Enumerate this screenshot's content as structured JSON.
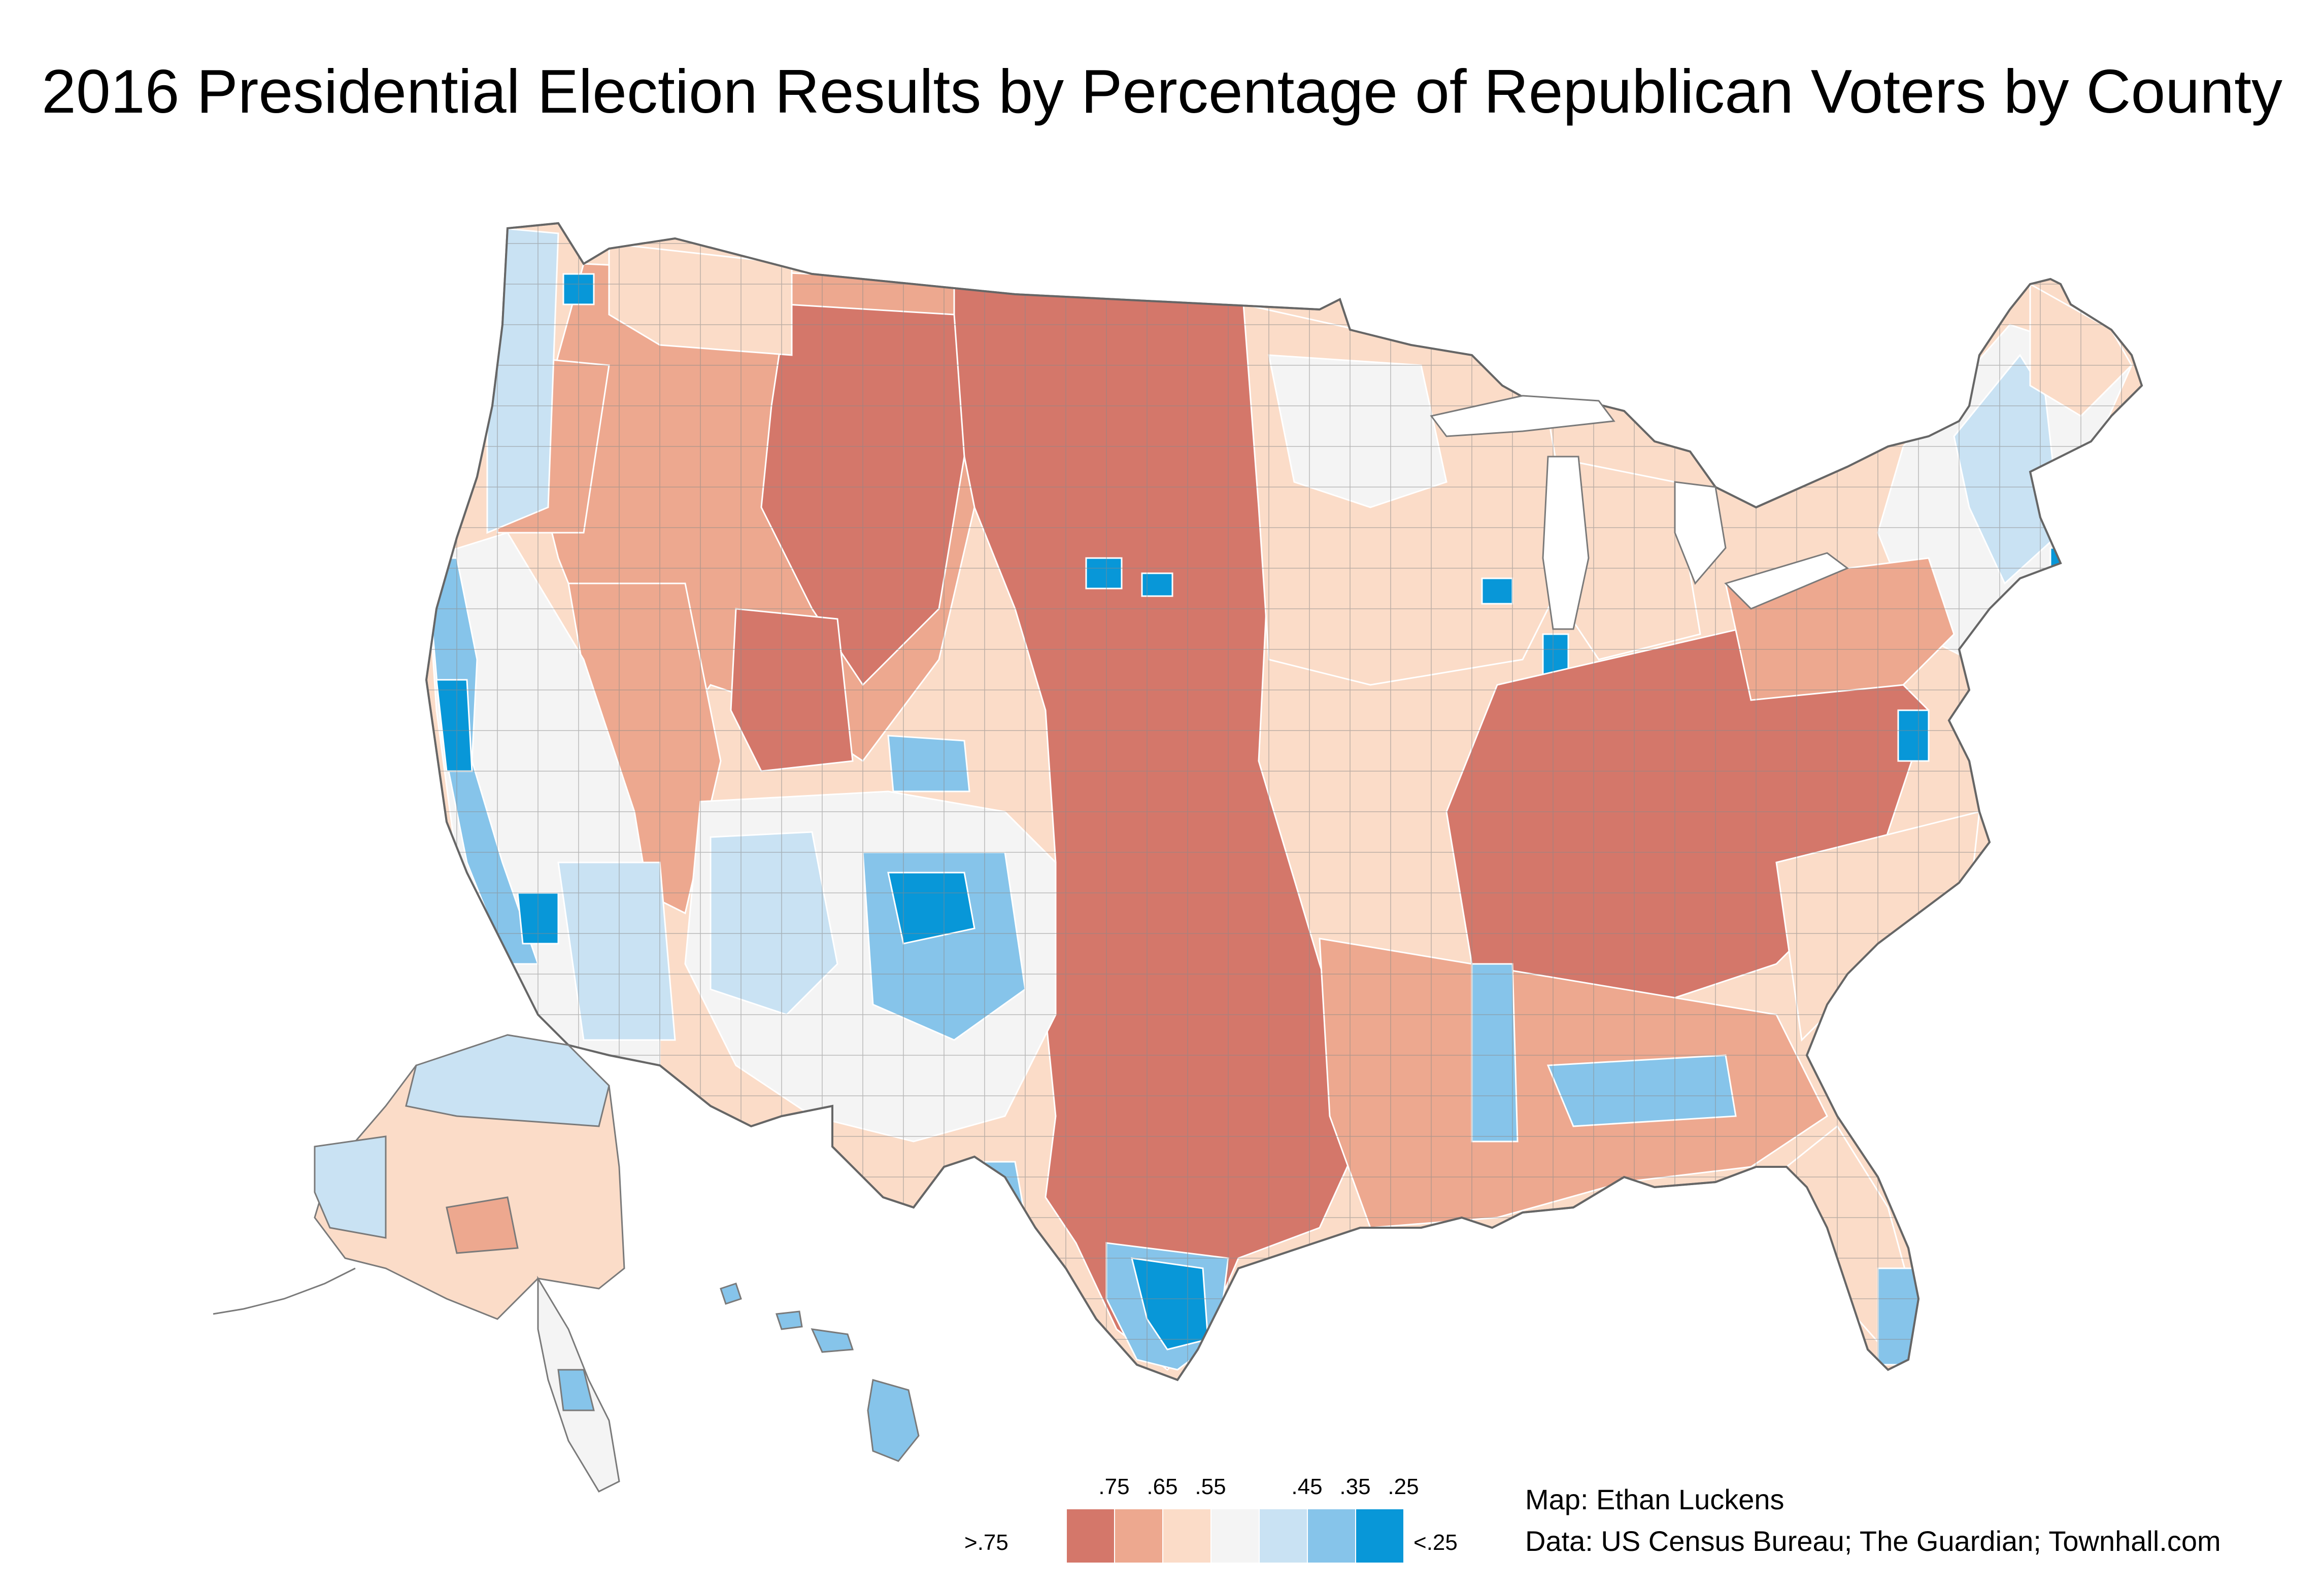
{
  "title": "2016 Presidential Election Results by Percentage of Republican Voters by County",
  "colors": {
    "over_75": "#d4776a",
    "65_75": "#eda88f",
    "55_65": "#fbdcc8",
    "45_55": "#f4f4f4",
    "35_45": "#c9e2f3",
    "25_35": "#86c4ea",
    "under_25": "#0897d8",
    "county_border": "#7a7a7a"
  },
  "legend": {
    "low_label": ">.75",
    "high_label": "<.25",
    "ticks": [
      ".75",
      ".65",
      ".55",
      ".45",
      ".35",
      ".25"
    ],
    "swatch_colors": [
      "#d4776a",
      "#eda88f",
      "#fbdcc8",
      "#f4f4f4",
      "#c9e2f3",
      "#86c4ea",
      "#0897d8"
    ]
  },
  "credits": {
    "map_by": "Map: Ethan Luckens",
    "data_source": "Data: US Census Bureau; The Guardian; Townhall.com"
  }
}
